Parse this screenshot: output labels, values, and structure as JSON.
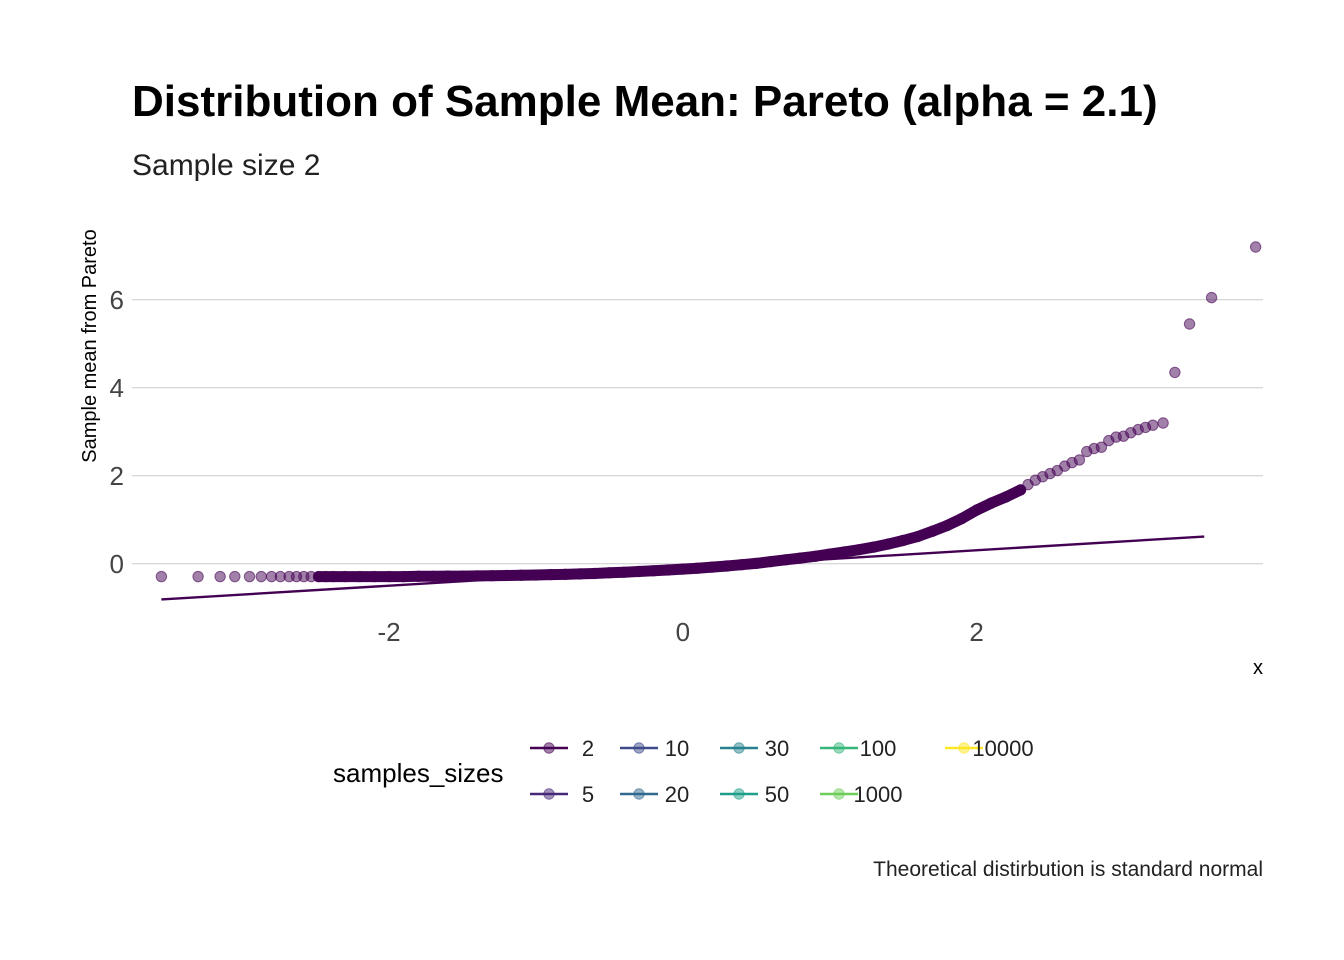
{
  "chart_data": {
    "type": "scatter",
    "title": "Distribution of Sample Mean: Pareto (alpha = 2.1)",
    "subtitle": "Sample size 2",
    "xlabel": "x",
    "ylabel": "Sample mean from Pareto",
    "caption": "Theoretical distirbution is standard normal",
    "xlim": [
      -3.75,
      3.95
    ],
    "ylim": [
      -1.05,
      7.7
    ],
    "x_ticks": [
      {
        "value": -2,
        "label": "-2"
      },
      {
        "value": 0,
        "label": "0"
      },
      {
        "value": 2,
        "label": "2"
      }
    ],
    "y_ticks": [
      {
        "value": 0,
        "label": "0"
      },
      {
        "value": 2,
        "label": "2"
      },
      {
        "value": 4,
        "label": "4"
      },
      {
        "value": 6,
        "label": "6"
      }
    ],
    "grid": "horizontal-major",
    "point_color": "#440154",
    "reference_line": {
      "x": [
        -3.55,
        3.55
      ],
      "y": [
        -0.81,
        0.62
      ],
      "color": "#440154"
    },
    "series": [
      {
        "name": "2",
        "points": [
          [
            -3.55,
            -0.29
          ],
          [
            -3.3,
            -0.29
          ],
          [
            -3.15,
            -0.29
          ],
          [
            -3.05,
            -0.29
          ],
          [
            -2.95,
            -0.29
          ],
          [
            -2.87,
            -0.29
          ],
          [
            -2.8,
            -0.29
          ],
          [
            -2.74,
            -0.29
          ],
          [
            -2.68,
            -0.29
          ],
          [
            -2.63,
            -0.29
          ],
          [
            -2.58,
            -0.29
          ],
          [
            -2.53,
            -0.29
          ],
          [
            -2.48,
            -0.29
          ],
          [
            -2.43,
            -0.29
          ],
          [
            -2.38,
            -0.29
          ],
          [
            -2.3,
            -0.29
          ],
          [
            -2.2,
            -0.29
          ],
          [
            -2.1,
            -0.29
          ],
          [
            -2.0,
            -0.29
          ],
          [
            -1.9,
            -0.29
          ],
          [
            -1.8,
            -0.285
          ],
          [
            -1.7,
            -0.285
          ],
          [
            -1.6,
            -0.28
          ],
          [
            -1.5,
            -0.28
          ],
          [
            -1.4,
            -0.275
          ],
          [
            -1.3,
            -0.27
          ],
          [
            -1.2,
            -0.265
          ],
          [
            -1.1,
            -0.26
          ],
          [
            -1.0,
            -0.255
          ],
          [
            -0.9,
            -0.245
          ],
          [
            -0.8,
            -0.24
          ],
          [
            -0.7,
            -0.23
          ],
          [
            -0.6,
            -0.22
          ],
          [
            -0.5,
            -0.205
          ],
          [
            -0.4,
            -0.19
          ],
          [
            -0.3,
            -0.175
          ],
          [
            -0.2,
            -0.16
          ],
          [
            -0.1,
            -0.14
          ],
          [
            0.0,
            -0.12
          ],
          [
            0.1,
            -0.1
          ],
          [
            0.2,
            -0.075
          ],
          [
            0.3,
            -0.05
          ],
          [
            0.4,
            -0.02
          ],
          [
            0.5,
            0.01
          ],
          [
            0.6,
            0.05
          ],
          [
            0.7,
            0.09
          ],
          [
            0.8,
            0.13
          ],
          [
            0.9,
            0.17
          ],
          [
            1.0,
            0.22
          ],
          [
            1.1,
            0.27
          ],
          [
            1.2,
            0.32
          ],
          [
            1.3,
            0.38
          ],
          [
            1.4,
            0.45
          ],
          [
            1.5,
            0.53
          ],
          [
            1.6,
            0.62
          ],
          [
            1.7,
            0.74
          ],
          [
            1.8,
            0.87
          ],
          [
            1.9,
            1.03
          ],
          [
            2.0,
            1.22
          ],
          [
            2.1,
            1.38
          ],
          [
            2.2,
            1.52
          ],
          [
            2.3,
            1.68
          ],
          [
            2.35,
            1.8
          ],
          [
            2.4,
            1.9
          ],
          [
            2.45,
            1.98
          ],
          [
            2.5,
            2.05
          ],
          [
            2.55,
            2.12
          ],
          [
            2.6,
            2.22
          ],
          [
            2.65,
            2.3
          ],
          [
            2.7,
            2.36
          ],
          [
            2.75,
            2.55
          ],
          [
            2.8,
            2.62
          ],
          [
            2.85,
            2.65
          ],
          [
            2.9,
            2.8
          ],
          [
            2.95,
            2.88
          ],
          [
            3.0,
            2.9
          ],
          [
            3.05,
            2.98
          ],
          [
            3.1,
            3.05
          ],
          [
            3.15,
            3.1
          ],
          [
            3.2,
            3.15
          ],
          [
            3.27,
            3.2
          ],
          [
            3.35,
            4.35
          ],
          [
            3.45,
            5.45
          ],
          [
            3.6,
            6.05
          ],
          [
            3.9,
            7.2
          ]
        ]
      }
    ],
    "legend": {
      "title": "samples_sizes",
      "placement": "bottom",
      "entries": [
        {
          "label": "2",
          "color": "#440154"
        },
        {
          "label": "5",
          "color": "#482878"
        },
        {
          "label": "10",
          "color": "#3E4A89"
        },
        {
          "label": "20",
          "color": "#31688E"
        },
        {
          "label": "30",
          "color": "#26828E"
        },
        {
          "label": "50",
          "color": "#1F9E89"
        },
        {
          "label": "100",
          "color": "#35B779"
        },
        {
          "label": "1000",
          "color": "#6DCD59"
        },
        {
          "label": "10000",
          "color": "#FDE725"
        }
      ]
    }
  }
}
